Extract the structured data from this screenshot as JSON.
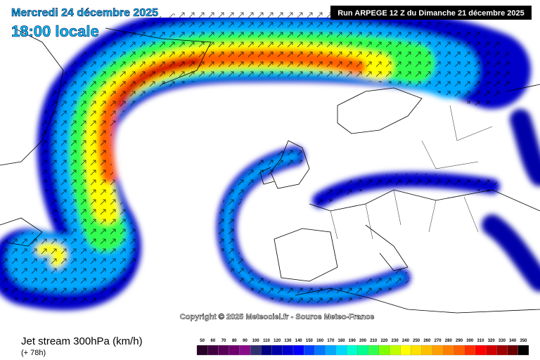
{
  "header": {
    "date": "Mercredi 24 décembre 2025",
    "time": "18:00 locale",
    "run": "Run ARPEGE 12 Z du Dimanche 21 décembre 2025"
  },
  "copyright": "Copyright © 2025 Meteociel.fr - Source Meteo-France",
  "footer": {
    "title": "Jet stream 300hPa (km/h)",
    "lead": "(+ 78h)"
  },
  "legend": {
    "labels": [
      50,
      60,
      70,
      80,
      90,
      100,
      110,
      120,
      130,
      140,
      150,
      160,
      170,
      180,
      190,
      200,
      210,
      220,
      230,
      240,
      250,
      260,
      270,
      280,
      290,
      300,
      310,
      320,
      330,
      340,
      350
    ],
    "colors": [
      "#280028",
      "#400040",
      "#580058",
      "#700070",
      "#880c88",
      "#303070",
      "#000080",
      "#0000a8",
      "#0000d0",
      "#0000ff",
      "#0040ff",
      "#0078ff",
      "#00a8ff",
      "#00d8ff",
      "#00ffd0",
      "#00ff90",
      "#30ff50",
      "#80ff00",
      "#c0ff00",
      "#ffff00",
      "#ffe000",
      "#ffc000",
      "#ffa000",
      "#ff8000",
      "#ff6000",
      "#ff3000",
      "#ff0000",
      "#d00000",
      "#a00000",
      "#680000",
      "#000000"
    ]
  }
}
